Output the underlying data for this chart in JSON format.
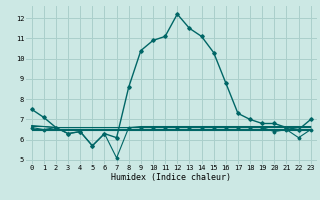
{
  "xlabel": "Humidex (Indice chaleur)",
  "bg_color": "#cce8e4",
  "grid_color": "#aacfcb",
  "line_color": "#006666",
  "xlim": [
    -0.5,
    23.5
  ],
  "ylim": [
    4.8,
    12.6
  ],
  "yticks": [
    5,
    6,
    7,
    8,
    9,
    10,
    11,
    12
  ],
  "xticks": [
    0,
    1,
    2,
    3,
    4,
    5,
    6,
    7,
    8,
    9,
    10,
    11,
    12,
    13,
    14,
    15,
    16,
    17,
    18,
    19,
    20,
    21,
    22,
    23
  ],
  "series1": [
    7.5,
    7.1,
    6.6,
    6.3,
    6.4,
    5.7,
    6.3,
    6.1,
    8.6,
    10.4,
    10.9,
    11.1,
    12.2,
    11.5,
    11.1,
    10.3,
    8.8,
    7.3,
    7.0,
    6.8,
    6.8,
    6.6,
    6.5,
    7.0
  ],
  "series2": [
    6.7,
    6.65,
    6.6,
    6.6,
    6.6,
    6.6,
    6.6,
    6.6,
    6.6,
    6.65,
    6.65,
    6.65,
    6.65,
    6.65,
    6.65,
    6.65,
    6.65,
    6.65,
    6.65,
    6.65,
    6.65,
    6.65,
    6.65,
    6.65
  ],
  "series3": [
    6.65,
    6.65,
    6.6,
    6.6,
    6.6,
    6.6,
    6.6,
    6.6,
    6.6,
    6.6,
    6.6,
    6.6,
    6.6,
    6.6,
    6.6,
    6.6,
    6.6,
    6.6,
    6.6,
    6.6,
    6.6,
    6.6,
    6.6,
    6.6
  ],
  "series4": [
    6.55,
    6.55,
    6.55,
    6.55,
    6.55,
    6.55,
    6.55,
    6.55,
    6.55,
    6.55,
    6.55,
    6.55,
    6.55,
    6.55,
    6.55,
    6.55,
    6.55,
    6.55,
    6.55,
    6.55,
    6.55,
    6.55,
    6.55,
    6.55
  ],
  "series5": [
    6.5,
    6.5,
    6.5,
    6.5,
    6.5,
    6.5,
    6.5,
    6.5,
    6.5,
    6.5,
    6.5,
    6.5,
    6.5,
    6.5,
    6.5,
    6.5,
    6.5,
    6.5,
    6.5,
    6.5,
    6.5,
    6.5,
    6.5,
    6.5
  ],
  "series_min": [
    6.6,
    6.5,
    6.6,
    6.3,
    6.4,
    5.7,
    6.3,
    5.1,
    6.6,
    6.6,
    6.6,
    6.6,
    6.6,
    6.6,
    6.6,
    6.6,
    6.6,
    6.6,
    6.6,
    6.6,
    6.4,
    6.5,
    6.1,
    6.5
  ]
}
